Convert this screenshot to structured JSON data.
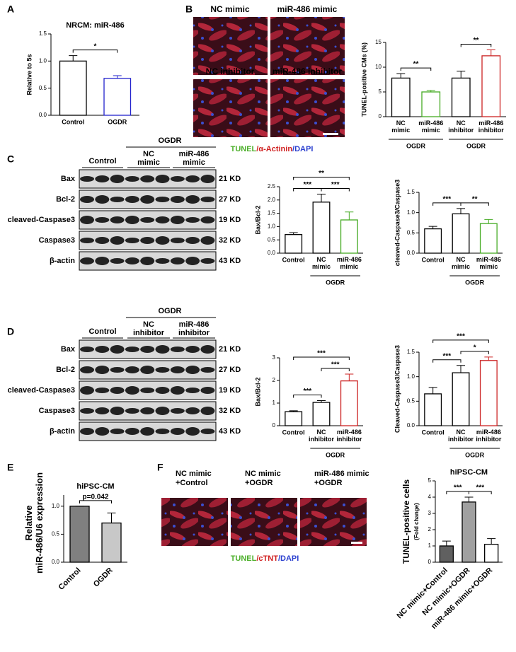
{
  "panel_labels": [
    "A",
    "B",
    "C",
    "D",
    "E",
    "F"
  ],
  "images": {
    "B": [
      "NC mimic",
      "miR-486 mimic",
      "NC inhibitor",
      "miR-486 inhibitor"
    ],
    "B_caption": [
      "TUNEL",
      "/α-Actinin",
      "/DAPI"
    ],
    "F": [
      [
        "NC mimic",
        "+Control"
      ],
      [
        "NC mimic",
        "+OGDR"
      ],
      [
        "miR-486 mimic",
        "+OGDR"
      ]
    ],
    "F_caption": [
      "TUNEL",
      "/cTNT",
      "/DAPI"
    ]
  },
  "blots": [
    {
      "header": "OGDR",
      "groups": [
        "Control",
        "NC mimic",
        "miR-486 mimic"
      ],
      "rows": [
        "Bax",
        "Bcl-2",
        "cleaved-Caspase3",
        "Caspase3",
        "β-actin"
      ],
      "kd": [
        "21 KD",
        "27 KD",
        "19 KD",
        "32 KD",
        "43 KD"
      ]
    },
    {
      "header": "OGDR",
      "groups": [
        "Control",
        "NC inhibitor",
        "miR-486 inhibitor"
      ],
      "rows": [
        "Bax",
        "Bcl-2",
        "cleaved-Caspase3",
        "Caspase3",
        "β-actin"
      ],
      "kd": [
        "21 KD",
        "27 KD",
        "19 KD",
        "32 KD",
        "43 KD"
      ]
    }
  ],
  "chart_data": [
    {
      "type": "bar",
      "title": "NRCM: miR-486",
      "ylabel": "Relative to 5s",
      "categories": [
        "Control",
        "OGDR"
      ],
      "values": [
        1.0,
        0.68
      ],
      "errors": [
        0.1,
        0.05
      ],
      "fills": [
        "#ffffff",
        "#ffffff"
      ],
      "colors": [
        "#000000",
        "#2222cc"
      ],
      "ylim": [
        0,
        1.5
      ],
      "yticks": [
        {
          "value": 0,
          "label": "0.0"
        },
        0.5,
        {
          "value": 1,
          "label": "1.0"
        },
        1.5
      ],
      "significance": [
        "*"
      ]
    },
    {
      "type": "bar",
      "ylabel": "TUNEL-positive CMs (%)",
      "categories": [
        "NC mimic",
        "miR-486 mimic",
        "NC inhibitor",
        "miR-486 inhibitor"
      ],
      "values": [
        7.8,
        5.0,
        7.8,
        12.3
      ],
      "errors": [
        0.9,
        0.3,
        1.4,
        1.2
      ],
      "fills": [
        "#ffffff",
        "#ffffff",
        "#ffffff",
        "#ffffff"
      ],
      "colors": [
        "#000000",
        "#44aa22",
        "#000000",
        "#cc2222"
      ],
      "ylim": [
        0,
        15
      ],
      "yticks": [
        0,
        5,
        10,
        15
      ],
      "significance": [
        "**",
        "**"
      ],
      "group_labels": [
        "OGDR",
        "OGDR"
      ]
    },
    {
      "type": "bar",
      "ylabel": "Bax/Bcl-2",
      "categories": [
        "Control",
        "NC mimic",
        "miR-486 mimic"
      ],
      "values": [
        0.7,
        1.92,
        1.25
      ],
      "errors": [
        0.07,
        0.3,
        0.3
      ],
      "fills": [
        "#ffffff",
        "#ffffff",
        "#ffffff"
      ],
      "colors": [
        "#000000",
        "#000000",
        "#44aa22"
      ],
      "ylim": [
        0,
        2.5
      ],
      "yticks": [
        {
          "value": 0,
          "label": "0.0"
        },
        0.5,
        {
          "value": 1,
          "label": "1.0"
        },
        1.5,
        {
          "value": 2,
          "label": "2.0"
        },
        2.5
      ],
      "significance": [
        "***",
        "***",
        "**"
      ],
      "group_labels": [
        "OGDR"
      ]
    },
    {
      "type": "bar",
      "ylabel": "cleaved-Caspase3/Caspase3",
      "categories": [
        "Control",
        "NC mimic",
        "miR-486 mimic"
      ],
      "values": [
        0.6,
        0.97,
        0.73
      ],
      "errors": [
        0.06,
        0.13,
        0.1
      ],
      "fills": [
        "#ffffff",
        "#ffffff",
        "#ffffff"
      ],
      "colors": [
        "#000000",
        "#000000",
        "#44aa22"
      ],
      "ylim": [
        0,
        1.5
      ],
      "yticks": [
        {
          "value": 0,
          "label": "0.0"
        },
        0.5,
        {
          "value": 1,
          "label": "1.0"
        },
        1.5
      ],
      "significance": [
        "***",
        "**"
      ],
      "group_labels": [
        "OGDR"
      ]
    },
    {
      "type": "bar",
      "ylabel": "Bax/Bcl-2",
      "categories": [
        "Control",
        "NC inhibitor",
        "miR-486 inhibitor"
      ],
      "values": [
        0.62,
        1.03,
        1.98
      ],
      "errors": [
        0.04,
        0.08,
        0.3
      ],
      "fills": [
        "#ffffff",
        "#ffffff",
        "#ffffff"
      ],
      "colors": [
        "#000000",
        "#000000",
        "#cc2222"
      ],
      "ylim": [
        0,
        3
      ],
      "yticks": [
        0,
        1,
        2,
        3
      ],
      "significance": [
        "***",
        "***",
        "***"
      ],
      "group_labels": [
        "OGDR"
      ]
    },
    {
      "type": "bar",
      "ylabel": "Cleaved-Caspase3/Caspase3",
      "categories": [
        "Control",
        "NC inhibitor",
        "miR-486 inhibitor"
      ],
      "values": [
        0.65,
        1.08,
        1.33
      ],
      "errors": [
        0.13,
        0.15,
        0.07
      ],
      "fills": [
        "#ffffff",
        "#ffffff",
        "#ffffff"
      ],
      "colors": [
        "#000000",
        "#000000",
        "#cc2222"
      ],
      "ylim": [
        0,
        1.5
      ],
      "yticks": [
        {
          "value": 0,
          "label": "0.0"
        },
        0.5,
        {
          "value": 1,
          "label": "1.0"
        },
        1.5
      ],
      "significance": [
        "***",
        "*",
        "***"
      ],
      "group_labels": [
        "OGDR"
      ]
    },
    {
      "type": "bar",
      "title": "hiPSC-CM",
      "ylabel": "Relative miR-486/U6 expression",
      "categories": [
        "Control",
        "OGDR"
      ],
      "values": [
        1.0,
        0.7
      ],
      "errors": [
        0,
        0.18
      ],
      "fills": [
        "#808080",
        "#c8c8c8"
      ],
      "colors": [
        "#000000",
        "#000000"
      ],
      "ylim": [
        0,
        1.2
      ],
      "yticks": [
        {
          "value": 0,
          "label": "0.0"
        },
        0.5,
        {
          "value": 1,
          "label": "1.0"
        }
      ],
      "significance": [
        "p=0.042"
      ],
      "x_label_rotation": 45
    },
    {
      "type": "bar",
      "title": "hiPSC-CM",
      "ylabel": "TUNEL-positive cells",
      "ylabel2": "(Fold change)",
      "categories": [
        "NC mimic+Control",
        "NC mimic+OGDR",
        "miR-486 mimic+OGDR"
      ],
      "values": [
        1.0,
        3.7,
        1.1
      ],
      "errors": [
        0.3,
        0.3,
        0.35
      ],
      "fills": [
        "#606060",
        "#a0a0a0",
        "#ffffff"
      ],
      "colors": [
        "#000000",
        "#000000",
        "#000000"
      ],
      "ylim": [
        0,
        5
      ],
      "yticks": [
        0,
        1,
        2,
        3,
        4,
        5
      ],
      "significance": [
        "***",
        "***"
      ],
      "x_label_rotation": 45
    }
  ]
}
